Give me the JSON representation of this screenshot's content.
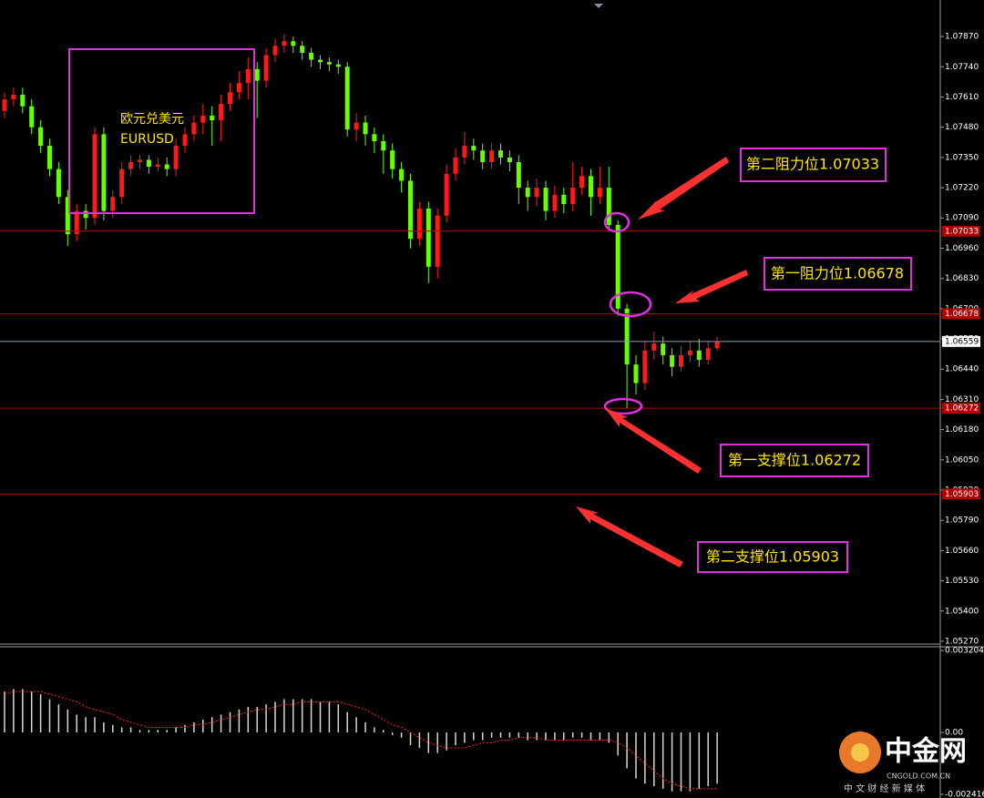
{
  "chart_data": [
    {
      "type": "candlestick",
      "up_color": "#ff1a1a",
      "down_color": "#66ff00",
      "ylim": [
        1.05262,
        1.08027
      ],
      "yticks": [
        {
          "value": 1.0787,
          "label": "1.07870"
        },
        {
          "value": 1.0774,
          "label": "1.07740"
        },
        {
          "value": 1.0761,
          "label": "1.07610"
        },
        {
          "value": 1.0748,
          "label": "1.07480"
        },
        {
          "value": 1.0735,
          "label": "1.07350"
        },
        {
          "value": 1.0722,
          "label": "1.07220"
        },
        {
          "value": 1.0709,
          "label": "1.07090"
        },
        {
          "value": 1.0696,
          "label": "1.06960"
        },
        {
          "value": 1.0683,
          "label": "1.06830"
        },
        {
          "value": 1.067,
          "label": "1.06700"
        },
        {
          "value": 1.0657,
          "label": "1.06570"
        },
        {
          "value": 1.0644,
          "label": "1.06440"
        },
        {
          "value": 1.0631,
          "label": "1.06310"
        },
        {
          "value": 1.0618,
          "label": "1.06180"
        },
        {
          "value": 1.0605,
          "label": "1.06050"
        },
        {
          "value": 1.0592,
          "label": "1.05920"
        },
        {
          "value": 1.0579,
          "label": "1.05790"
        },
        {
          "value": 1.0566,
          "label": "1.05660"
        },
        {
          "value": 1.0553,
          "label": "1.05530"
        },
        {
          "value": 1.054,
          "label": "1.05400"
        },
        {
          "value": 1.0527,
          "label": "1.05270"
        }
      ],
      "levels": [
        1.07033,
        1.06678,
        1.06272,
        1.05903
      ],
      "level_color": "#b00000",
      "current_price": 1.06559,
      "annotations": [
        "欧元兑美元",
        "EURUSD",
        "第二阻力位1.07033",
        "第一阻力位1.06678",
        "第一支撑位1.06272",
        "第二支撑位1.05903"
      ],
      "open": [
        1.0755,
        1.076,
        1.0762,
        1.0757,
        1.0748,
        1.074,
        1.073,
        1.0718,
        1.0702,
        1.0712,
        1.0709,
        1.0745,
        1.0712,
        1.0718,
        1.073,
        1.0733,
        1.0734,
        1.0731,
        1.0732,
        1.073,
        1.074,
        1.0745,
        1.075,
        1.0753,
        1.0751,
        1.0758,
        1.0763,
        1.0767,
        1.0773,
        1.0768,
        1.0779,
        1.0783,
        1.0785,
        1.0783,
        1.078,
        1.0777,
        1.0776,
        1.0775,
        1.0774,
        1.0747,
        1.075,
        1.0745,
        1.0742,
        1.0738,
        1.073,
        1.0725,
        1.07,
        1.0713,
        1.0688,
        1.071,
        1.0728,
        1.0735,
        1.074,
        1.0738,
        1.0733,
        1.0738,
        1.0735,
        1.0733,
        1.0722,
        1.0718,
        1.0722,
        1.0712,
        1.0719,
        1.0715,
        1.0722,
        1.0727,
        1.0718,
        1.0722,
        1.0706,
        1.067,
        1.0646,
        1.0638,
        1.0652,
        1.0655,
        1.065,
        1.0645,
        1.065,
        1.0652,
        1.0648,
        1.0653
      ],
      "high": [
        1.0763,
        1.0765,
        1.0765,
        1.076,
        1.0751,
        1.0743,
        1.0733,
        1.0721,
        1.0715,
        1.0715,
        1.0748,
        1.0748,
        1.0721,
        1.0733,
        1.0736,
        1.0736,
        1.0736,
        1.0735,
        1.0735,
        1.0743,
        1.0748,
        1.0753,
        1.0758,
        1.0757,
        1.0762,
        1.0767,
        1.0772,
        1.0778,
        1.0776,
        1.0782,
        1.0786,
        1.0788,
        1.0787,
        1.0785,
        1.0782,
        1.0779,
        1.0778,
        1.0777,
        1.0776,
        1.0754,
        1.0753,
        1.0748,
        1.0745,
        1.0741,
        1.0733,
        1.0728,
        1.0716,
        1.0716,
        1.0713,
        1.0732,
        1.0739,
        1.0746,
        1.0743,
        1.0741,
        1.0741,
        1.0741,
        1.0738,
        1.0736,
        1.0725,
        1.0726,
        1.0725,
        1.0723,
        1.0722,
        1.0733,
        1.0731,
        1.073,
        1.0731,
        1.0731,
        1.0708,
        1.0672,
        1.065,
        1.0656,
        1.066,
        1.0658,
        1.0653,
        1.0654,
        1.0656,
        1.0657,
        1.0656,
        1.0658
      ],
      "low": [
        1.0752,
        1.0757,
        1.0754,
        1.0745,
        1.0737,
        1.0727,
        1.0715,
        1.0697,
        1.0699,
        1.0704,
        1.0706,
        1.0708,
        1.0709,
        1.0715,
        1.0727,
        1.073,
        1.0728,
        1.0729,
        1.0727,
        1.0727,
        1.0737,
        1.0742,
        1.0745,
        1.074,
        1.0742,
        1.0755,
        1.076,
        1.076,
        1.0752,
        1.0765,
        1.0776,
        1.078,
        1.078,
        1.0777,
        1.0774,
        1.0773,
        1.0772,
        1.0771,
        1.0744,
        1.0742,
        1.074,
        1.0737,
        1.0728,
        1.0726,
        1.072,
        1.0696,
        1.0697,
        1.0681,
        1.0683,
        1.0707,
        1.0725,
        1.0732,
        1.0734,
        1.073,
        1.073,
        1.0732,
        1.0729,
        1.0715,
        1.0712,
        1.0714,
        1.0708,
        1.0709,
        1.0711,
        1.0712,
        1.0719,
        1.071,
        1.0715,
        1.0703,
        1.0667,
        1.0627,
        1.0633,
        1.0635,
        1.0648,
        1.0646,
        1.0641,
        1.0643,
        1.0647,
        1.0645,
        1.0646,
        1.0652
      ],
      "close": [
        1.076,
        1.0762,
        1.0757,
        1.0748,
        1.074,
        1.073,
        1.0718,
        1.0702,
        1.0712,
        1.0709,
        1.0745,
        1.0712,
        1.0718,
        1.073,
        1.0733,
        1.0734,
        1.0731,
        1.0732,
        1.073,
        1.074,
        1.0745,
        1.075,
        1.0753,
        1.0751,
        1.0758,
        1.0763,
        1.0767,
        1.0773,
        1.0768,
        1.0779,
        1.0783,
        1.0785,
        1.0783,
        1.078,
        1.0777,
        1.0776,
        1.0775,
        1.0774,
        1.0747,
        1.075,
        1.0745,
        1.0742,
        1.0738,
        1.073,
        1.0725,
        1.07,
        1.0713,
        1.0688,
        1.071,
        1.0728,
        1.0735,
        1.074,
        1.0738,
        1.0733,
        1.0738,
        1.0735,
        1.0733,
        1.0722,
        1.0718,
        1.0722,
        1.0712,
        1.0719,
        1.0715,
        1.0722,
        1.0727,
        1.0718,
        1.0722,
        1.0706,
        1.067,
        1.0646,
        1.0638,
        1.0652,
        1.0655,
        1.065,
        1.0645,
        1.065,
        1.0652,
        1.0648,
        1.0653,
        1.0656
      ]
    },
    {
      "type": "macd",
      "color": "#d8d8d8",
      "signal_color": "#ff2020",
      "ylim": [
        -0.00256,
        0.00335
      ],
      "yticks": [
        0.003204,
        {
          "value": 0,
          "label": "0.00"
        },
        -0.002416
      ],
      "values": [
        0.0016,
        0.0017,
        0.0017,
        0.0016,
        0.0015,
        0.0013,
        0.0011,
        0.0009,
        0.0007,
        0.0006,
        0.0006,
        0.0004,
        0.0003,
        0.0002,
        0.0002,
        0.0001,
        0.0001,
        0.0001,
        0.0001,
        0.0002,
        0.0003,
        0.0004,
        0.0005,
        0.0006,
        0.0007,
        0.0008,
        0.0009,
        0.001,
        0.001,
        0.0011,
        0.0012,
        0.0013,
        0.0013,
        0.0013,
        0.0013,
        0.0012,
        0.0012,
        0.0011,
        0.0008,
        0.0006,
        0.0004,
        0.0002,
        0.0001,
        -0.0001,
        -0.0002,
        -0.0005,
        -0.0006,
        -0.0008,
        -0.0008,
        -0.0007,
        -0.0005,
        -0.0004,
        -0.0003,
        -0.0003,
        -0.0002,
        -0.0002,
        -0.0002,
        -0.0002,
        -0.0003,
        -0.0003,
        -0.0003,
        -0.0003,
        -0.0003,
        -0.0002,
        -0.0002,
        -0.0003,
        -0.0003,
        -0.0004,
        -0.0009,
        -0.0014,
        -0.0018,
        -0.002,
        -0.0021,
        -0.0022,
        -0.0023,
        -0.0023,
        -0.0023,
        -0.0022,
        -0.0021,
        -0.002
      ],
      "signal": [
        0.0015,
        0.0016,
        0.0016,
        0.0016,
        0.0016,
        0.0015,
        0.0014,
        0.0013,
        0.0012,
        0.001,
        0.0009,
        0.0008,
        0.0007,
        0.0005,
        0.0004,
        0.0003,
        0.0002,
        0.0002,
        0.0002,
        0.0002,
        0.0002,
        0.0003,
        0.0003,
        0.0004,
        0.0005,
        0.0006,
        0.0007,
        0.0008,
        0.0009,
        0.0009,
        0.001,
        0.0011,
        0.0011,
        0.0012,
        0.0012,
        0.0012,
        0.0012,
        0.0012,
        0.0011,
        0.001,
        0.0009,
        0.0007,
        0.0005,
        0.0003,
        0.0002,
        0,
        -0.0002,
        -0.0004,
        -0.0005,
        -0.0006,
        -0.0006,
        -0.0006,
        -0.0005,
        -0.0004,
        -0.0004,
        -0.0003,
        -0.0003,
        -0.0002,
        -0.0002,
        -0.0002,
        -0.0003,
        -0.0003,
        -0.0003,
        -0.0003,
        -0.0003,
        -0.0003,
        -0.0003,
        -0.0003,
        -0.0004,
        -0.0006,
        -0.0009,
        -0.0012,
        -0.0015,
        -0.0018,
        -0.002,
        -0.0021,
        -0.0022,
        -0.0022,
        -0.0022,
        -0.0022
      ]
    }
  ],
  "watermark": {
    "brand": "中金网",
    "domain": "CNGOLD.COM.CN",
    "slogan": "中 文 财 经 新 媒 体"
  }
}
